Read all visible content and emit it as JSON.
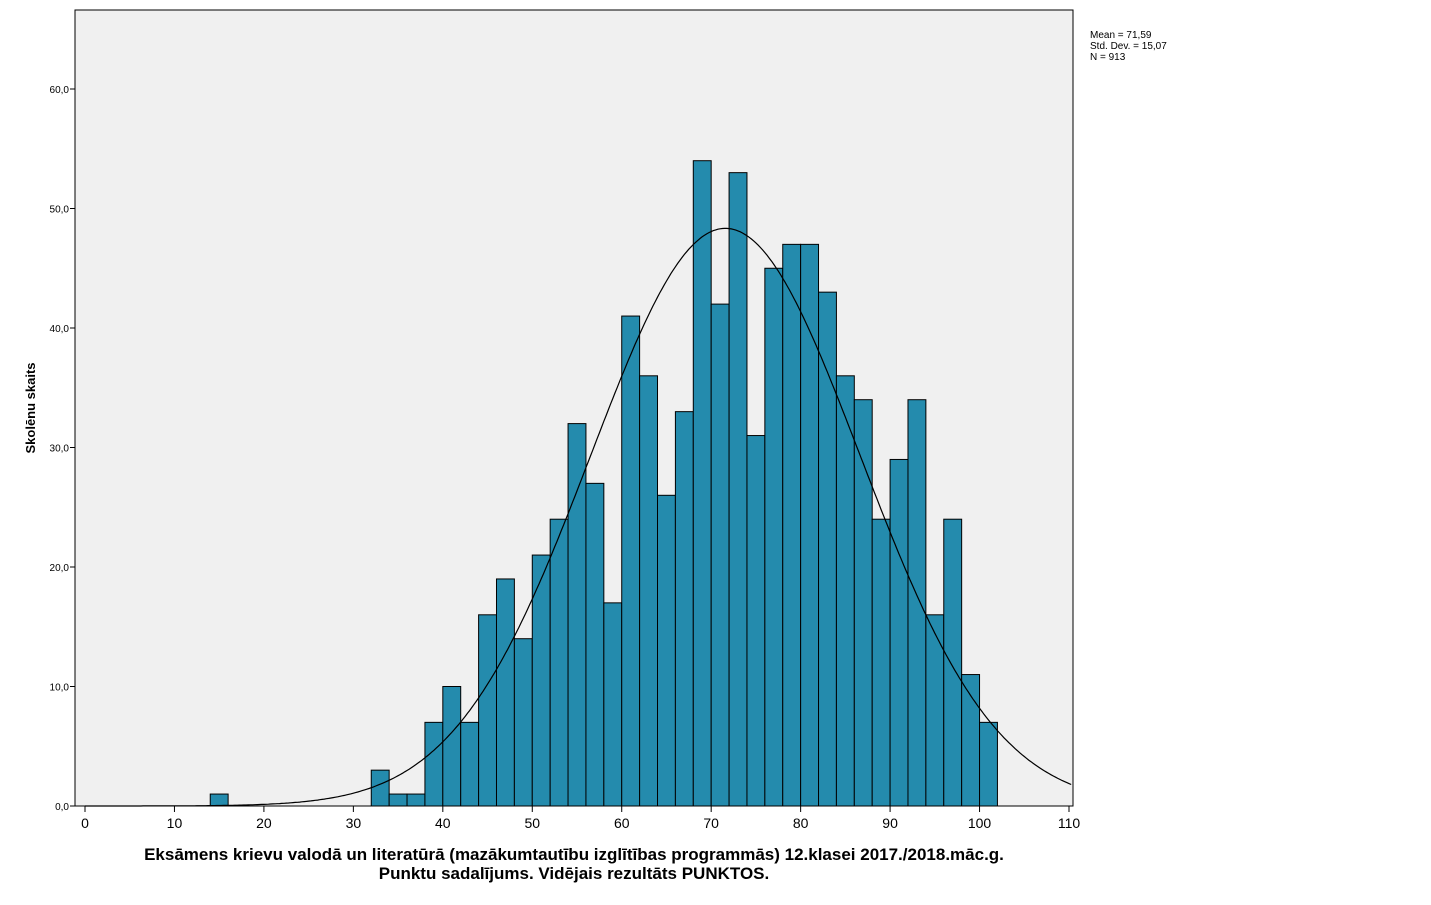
{
  "chart_data": {
    "type": "bar",
    "subtype": "histogram",
    "title": "",
    "xlabel_line1": "Eksāmens krievu valodā un literatūrā (mazākumtautību izglītības programmās) 12.klasei 2017./2018.māc.g.",
    "xlabel_line2": "Punktu sadalījums. Vidējais rezultāts PUNKTOS.",
    "ylabel": "Skolēnu skaits",
    "xlim": [
      0,
      110
    ],
    "ylim": [
      0,
      60
    ],
    "x_ticks": [
      "0",
      "10",
      "20",
      "30",
      "40",
      "50",
      "60",
      "70",
      "80",
      "90",
      "100",
      "110"
    ],
    "y_ticks": [
      "0,0",
      "10,0",
      "20,0",
      "30,0",
      "40,0",
      "50,0",
      "60,0"
    ],
    "bin_width": 2,
    "bins": [
      {
        "start": 14,
        "count": 1
      },
      {
        "start": 32,
        "count": 3
      },
      {
        "start": 34,
        "count": 1
      },
      {
        "start": 36,
        "count": 1
      },
      {
        "start": 38,
        "count": 7
      },
      {
        "start": 40,
        "count": 10
      },
      {
        "start": 42,
        "count": 7
      },
      {
        "start": 44,
        "count": 16
      },
      {
        "start": 46,
        "count": 19
      },
      {
        "start": 48,
        "count": 14
      },
      {
        "start": 50,
        "count": 21
      },
      {
        "start": 52,
        "count": 24
      },
      {
        "start": 54,
        "count": 32
      },
      {
        "start": 56,
        "count": 27
      },
      {
        "start": 58,
        "count": 17
      },
      {
        "start": 60,
        "count": 41
      },
      {
        "start": 62,
        "count": 36
      },
      {
        "start": 64,
        "count": 26
      },
      {
        "start": 66,
        "count": 33
      },
      {
        "start": 68,
        "count": 54
      },
      {
        "start": 70,
        "count": 42
      },
      {
        "start": 72,
        "count": 53
      },
      {
        "start": 74,
        "count": 31
      },
      {
        "start": 76,
        "count": 45
      },
      {
        "start": 78,
        "count": 47
      },
      {
        "start": 80,
        "count": 47
      },
      {
        "start": 82,
        "count": 43
      },
      {
        "start": 84,
        "count": 36
      },
      {
        "start": 86,
        "count": 34
      },
      {
        "start": 88,
        "count": 24
      },
      {
        "start": 90,
        "count": 29
      },
      {
        "start": 92,
        "count": 34
      },
      {
        "start": 94,
        "count": 16
      },
      {
        "start": 96,
        "count": 24
      },
      {
        "start": 98,
        "count": 11
      },
      {
        "start": 100,
        "count": 7
      }
    ],
    "normal_curve": {
      "mean": 71.59,
      "sd": 15.07,
      "n": 913
    },
    "stats": {
      "mean_label": "Mean = 71,59",
      "sd_label": "Std. Dev. = 15,07",
      "n_label": "N = 913"
    },
    "colors": {
      "bar": "#248BAD",
      "plot_bg": "#F0F0F0",
      "curve": "#000000"
    }
  }
}
